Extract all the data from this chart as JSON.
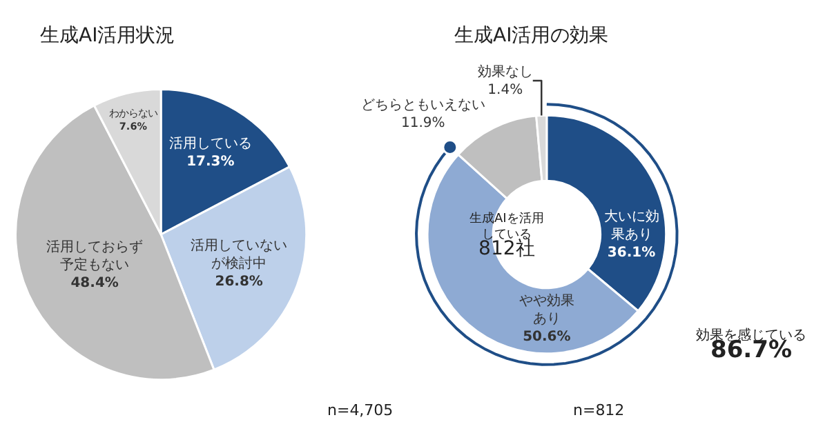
{
  "chart_data": [
    {
      "type": "pie",
      "title": "生成AI活用状況",
      "categories": [
        "活用している",
        "活用していないが検討中",
        "活用しておらず予定もない",
        "わからない"
      ],
      "values": [
        17.3,
        26.8,
        48.4,
        7.6
      ],
      "value_labels": [
        "17.3%",
        "26.8%",
        "48.4%",
        "7.6%"
      ],
      "colors": [
        "#1f4e87",
        "#bdd0ea",
        "#bfbfbf",
        "#d9d9d9"
      ],
      "annotations": [
        "n=4,705"
      ]
    },
    {
      "type": "donut",
      "title": "生成AI活用の効果",
      "categories": [
        "大いに効果あり",
        "やや効果あり",
        "どちらともいえない",
        "効果なし"
      ],
      "values": [
        36.1,
        50.6,
        11.9,
        1.4
      ],
      "value_labels": [
        "36.1%",
        "50.6%",
        "11.9%",
        "1.4%"
      ],
      "colors": [
        "#1f4e87",
        "#8eaad3",
        "#bfbfbf",
        "#d9d9d9"
      ],
      "annotations": [
        "生成AIを活用している",
        "812社",
        "効果を感じている",
        "86.7%",
        "n=812"
      ]
    }
  ]
}
